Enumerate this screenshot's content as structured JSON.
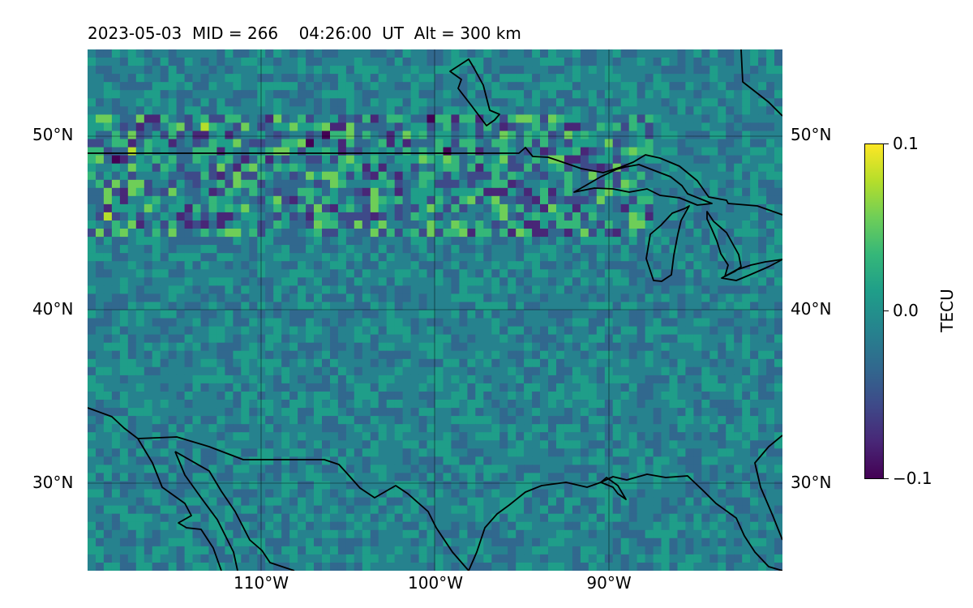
{
  "title": "2023-05-03  MID = 266    04:26:00  UT  Alt = 300 km",
  "map": {
    "projection": "equirectangular",
    "lon_range": [
      -120,
      -80
    ],
    "lat_range": [
      25,
      55
    ],
    "lat_ticks": [
      "30°N",
      "40°N",
      "50°N"
    ],
    "lon_ticks": [
      "110°W",
      "100°W",
      "90°W"
    ],
    "gridlines": true,
    "coastline_color": "#000000"
  },
  "colorbar": {
    "label": "TECU",
    "colormap": "viridis",
    "range": [
      -0.1,
      0.1
    ],
    "ticks": [
      "0.1",
      "0.0",
      "−0.1"
    ]
  }
}
